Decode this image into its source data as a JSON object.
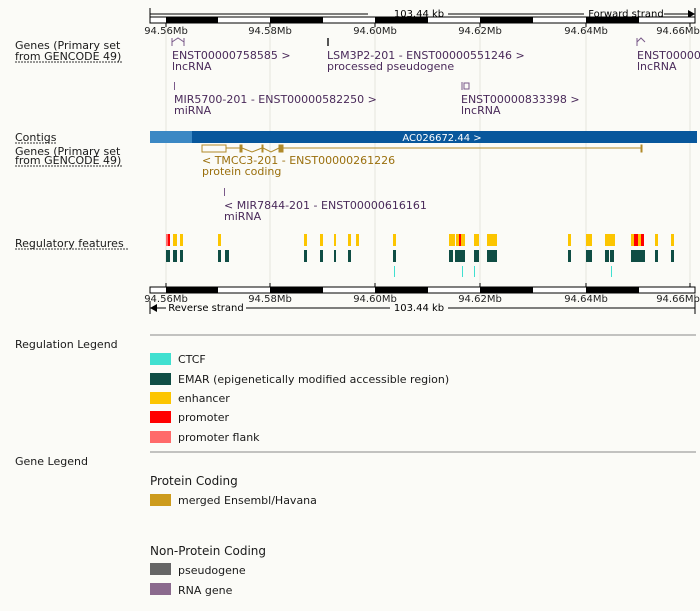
{
  "ruler_top": {
    "span": "103.44 kb",
    "strand": "Forward strand",
    "ticks": [
      "94.56Mb",
      "94.58Mb",
      "94.60Mb",
      "94.62Mb",
      "94.64Mb",
      "94.66Mb"
    ]
  },
  "ruler_bottom": {
    "span": "103.44 kb",
    "strand": "Reverse strand",
    "ticks": [
      "94.56Mb",
      "94.58Mb",
      "94.60Mb",
      "94.62Mb",
      "94.64Mb",
      "94.66Mb"
    ]
  },
  "tracks": {
    "genes_forward": {
      "line1": "Genes (Primary set",
      "line2": "from GENCODE 49)"
    },
    "contigs": "Contigs",
    "genes_reverse": {
      "line1": "Genes (Primary set",
      "line2": "from GENCODE 49)"
    },
    "regulatory": "Regulatory features"
  },
  "genes_forward": [
    {
      "id": "ENST00000758585 >",
      "biotype": "lncRNA"
    },
    {
      "id": "LSM3P2-201 - ENST00000551246 >",
      "biotype": "processed pseudogene"
    },
    {
      "id": "ENST00000",
      "biotype": "lncRNA"
    },
    {
      "id": "MIR5700-201 - ENST00000582250 >",
      "biotype": "miRNA"
    },
    {
      "id": "ENST00000833398 >",
      "biotype": "lncRNA"
    }
  ],
  "contig": {
    "label": "AC026672.44 >"
  },
  "genes_reverse": [
    {
      "id": "< TMCC3-201 - ENST00000261226",
      "biotype": "protein coding"
    },
    {
      "id": "< MIR7844-201 - ENST00000616161",
      "biotype": "miRNA"
    }
  ],
  "regulation_legend": {
    "title": "Regulation Legend",
    "items": [
      {
        "label": "CTCF",
        "color": "#40e0d0"
      },
      {
        "label": "EMAR (epigenetically modified accessible region)",
        "color": "#0f4d44"
      },
      {
        "label": "enhancer",
        "color": "#fcc500"
      },
      {
        "label": "promoter",
        "color": "#ff0000"
      },
      {
        "label": "promoter flank",
        "color": "#ff6a6a"
      }
    ]
  },
  "gene_legend": {
    "title": "Gene Legend",
    "protein_coding": {
      "heading": "Protein Coding",
      "items": [
        {
          "label": "merged Ensembl/Havana",
          "color": "#cd9b1d"
        }
      ]
    },
    "non_protein_coding": {
      "heading": "Non-Protein Coding",
      "items": [
        {
          "label": "pseudogene",
          "color": "#666666"
        },
        {
          "label": "RNA gene",
          "color": "#8b6a8e"
        }
      ]
    }
  },
  "colors": {
    "gene_forward_text": "#4a2a5a",
    "gene_reverse_text": "#9a6f0d",
    "contig_dark": "#08579c",
    "contig_light": "#3b88c4",
    "label_text": "#1a1a1a"
  }
}
